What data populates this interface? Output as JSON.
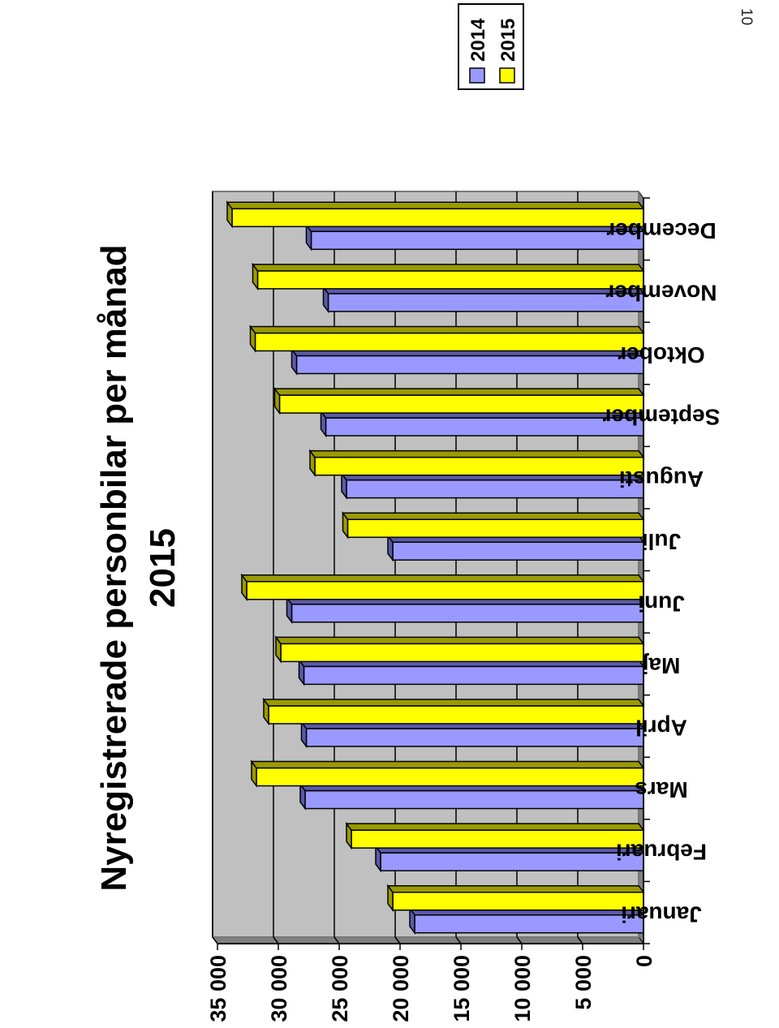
{
  "page": {
    "number": "10"
  },
  "colors": {
    "series_2014": "#9999ff",
    "series_2014_dark": "#5a5aa8",
    "series_2015": "#ffff00",
    "series_2015_dark": "#9a9a00",
    "plot_background": "#c0c0c0",
    "wall_side": "#808080",
    "gridline": "#000000"
  },
  "chart_data": {
    "type": "bar",
    "orientation": "horizontal-3d",
    "title": "Nyregistrerade personbilar per månad",
    "subtitle": "2015",
    "categories": [
      "Januari",
      "Februari",
      "Mars",
      "April",
      "Maj",
      "Juni",
      "Juli",
      "Augusti",
      "September",
      "Oktober",
      "November",
      "December"
    ],
    "series": [
      {
        "name": "2014",
        "values": [
          18800,
          21600,
          27800,
          27700,
          27900,
          28900,
          20600,
          24400,
          26100,
          28500,
          25900,
          27300
        ]
      },
      {
        "name": "2015",
        "values": [
          20600,
          24000,
          31800,
          30800,
          29800,
          32600,
          24300,
          27000,
          29900,
          31900,
          31700,
          33800
        ]
      }
    ],
    "value_axis": {
      "min": 0,
      "max": 35000,
      "step": 5000,
      "tick_labels": [
        "0",
        "5 000",
        "10 000",
        "15 000",
        "20 000",
        "25 000",
        "30 000",
        "35 000"
      ]
    },
    "grid": true,
    "legend": {
      "position": "top-right",
      "entries": [
        "2014",
        "2015"
      ]
    }
  }
}
